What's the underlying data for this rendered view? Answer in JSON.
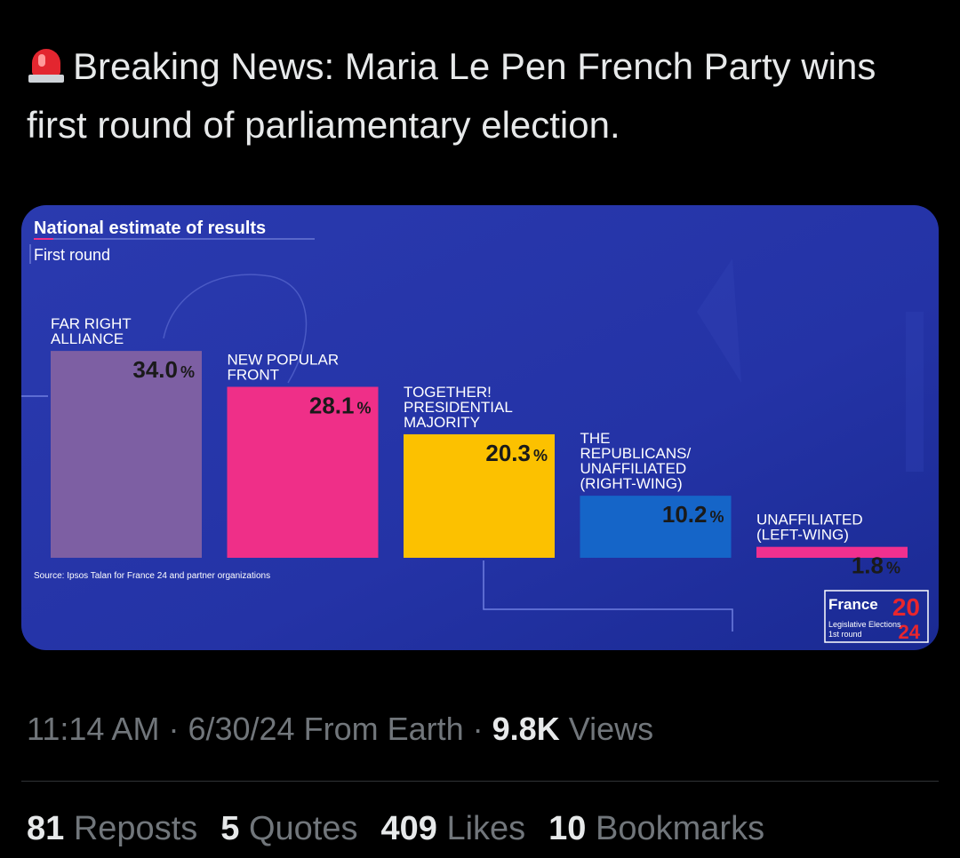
{
  "tweet": {
    "icon": "siren-icon",
    "text": "Breaking News: Maria Le Pen French Party wins first round of parliamentary election."
  },
  "chart_data": {
    "type": "bar",
    "title": "National estimate of results",
    "subtitle": "First round",
    "categories": [
      [
        "FAR RIGHT",
        "ALLIANCE"
      ],
      [
        "NEW POPULAR",
        "FRONT"
      ],
      [
        "TOGETHER!",
        "PRESIDENTIAL",
        "MAJORITY"
      ],
      [
        "THE",
        "REPUBLICANS/",
        "UNAFFILIATED",
        "(RIGHT-WING)"
      ],
      [
        "UNAFFILIATED",
        "(LEFT-WING)"
      ]
    ],
    "values": [
      34.0,
      28.1,
      20.3,
      10.2,
      1.8
    ],
    "value_labels": [
      "34.0",
      "28.1",
      "20.3",
      "10.2",
      "1.8"
    ],
    "unit": "%",
    "colors": [
      "#7d5fa3",
      "#ef2f88",
      "#fcc100",
      "#1565c8",
      "#f0308f"
    ],
    "source": "Source: Ipsos Talan for France 24 and partner organizations",
    "background": "#2434a8"
  },
  "logo": {
    "brand": "France",
    "number_top": "20",
    "number_bottom": "24",
    "line1": "Legislative Elections",
    "line2": "1st round"
  },
  "meta": {
    "time": "11:14 AM",
    "date": "6/30/24",
    "location": "From Earth",
    "views_count": "9.8K",
    "views_label": "Views"
  },
  "stats": [
    {
      "count": "81",
      "label": "Reposts"
    },
    {
      "count": "5",
      "label": "Quotes"
    },
    {
      "count": "409",
      "label": "Likes"
    },
    {
      "count": "10",
      "label": "Bookmarks"
    }
  ]
}
